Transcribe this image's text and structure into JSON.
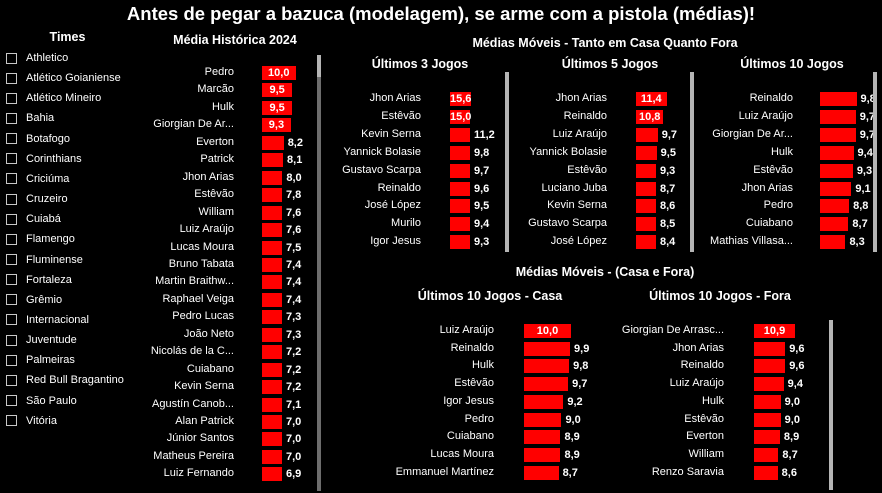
{
  "page_title": "Antes de pegar a bazuca (modelagem), se arme com a pistola (médias)!",
  "colors": {
    "bar": "#ff0000",
    "background": "#000000",
    "text": "#ffffff"
  },
  "filter": {
    "title": "Times",
    "items": [
      "Athletico",
      "Atlético Goianiense",
      "Atlético Mineiro",
      "Bahia",
      "Botafogo",
      "Corinthians",
      "Criciúma",
      "Cruzeiro",
      "Cuiabá",
      "Flamengo",
      "Fluminense",
      "Fortaleza",
      "Grêmio",
      "Internacional",
      "Juventude",
      "Palmeiras",
      "Red Bull Bragantino",
      "São Paulo",
      "Vitória"
    ]
  },
  "section_moveis_title": "Médias Móveis - Tanto em Casa Quanto Fora",
  "section_casafora_title": "Médias Móveis - (Casa e Fora)",
  "chart_data": [
    {
      "type": "bar",
      "orientation": "horizontal",
      "title": "Média Histórica 2024",
      "categories": [
        "Pedro",
        "Marcão",
        "Hulk",
        "Giorgian De Ar...",
        "Everton",
        "Patrick",
        "Jhon Arias",
        "Estêvão",
        "William",
        "Luiz Araújo",
        "Lucas Moura",
        "Bruno Tabata",
        "Martin Braithw...",
        "Raphael Veiga",
        "Pedro Lucas",
        "João Neto",
        "Nicolás de la C...",
        "Cuiabano",
        "Kevin Serna",
        "Agustín Canob...",
        "Alan Patrick",
        "Júnior Santos",
        "Matheus Pereira",
        "Luiz Fernando"
      ],
      "values": [
        10.0,
        9.5,
        9.5,
        9.3,
        8.2,
        8.1,
        8.0,
        7.8,
        7.6,
        7.6,
        7.5,
        7.4,
        7.4,
        7.4,
        7.3,
        7.3,
        7.2,
        7.2,
        7.2,
        7.1,
        7.0,
        7.0,
        7.0,
        6.9
      ],
      "labels": [
        "10,0",
        "9,5",
        "9,5",
        "9,3",
        "8,2",
        "8,1",
        "8,0",
        "7,8",
        "7,6",
        "7,6",
        "7,5",
        "7,4",
        "7,4",
        "7,4",
        "7,3",
        "7,3",
        "7,2",
        "7,2",
        "7,2",
        "7,1",
        "7,0",
        "7,0",
        "7,0",
        "6,9"
      ]
    },
    {
      "type": "bar",
      "orientation": "horizontal",
      "title": "Últimos 3 Jogos",
      "categories": [
        "Jhon Arias",
        "Estêvão",
        "Kevin Serna",
        "Yannick Bolasie",
        "Gustavo Scarpa",
        "Reinaldo",
        "José López",
        "Murilo",
        "Igor Jesus"
      ],
      "values": [
        15.6,
        15.0,
        11.2,
        9.8,
        9.7,
        9.6,
        9.5,
        9.4,
        9.3
      ],
      "labels": [
        "15,6",
        "15,0",
        "11,2",
        "9,8",
        "9,7",
        "9,6",
        "9,5",
        "9,4",
        "9,3"
      ]
    },
    {
      "type": "bar",
      "orientation": "horizontal",
      "title": "Últimos 5 Jogos",
      "categories": [
        "Jhon Arias",
        "Reinaldo",
        "Luiz Araújo",
        "Yannick Bolasie",
        "Estêvão",
        "Luciano Juba",
        "Kevin Serna",
        "Gustavo Scarpa",
        "José López"
      ],
      "values": [
        11.4,
        10.8,
        9.7,
        9.5,
        9.3,
        8.7,
        8.6,
        8.5,
        8.4
      ],
      "labels": [
        "11,4",
        "10,8",
        "9,7",
        "9,5",
        "9,3",
        "8,7",
        "8,6",
        "8,5",
        "8,4"
      ]
    },
    {
      "type": "bar",
      "orientation": "horizontal",
      "title": "Últimos 10 Jogos",
      "categories": [
        "Reinaldo",
        "Luiz Araújo",
        "Giorgian De Ar...",
        "Hulk",
        "Estêvão",
        "Jhon Arias",
        "Pedro",
        "Cuiabano",
        "Mathias Villasa..."
      ],
      "values": [
        9.8,
        9.7,
        9.7,
        9.4,
        9.3,
        9.1,
        8.8,
        8.7,
        8.3
      ],
      "labels": [
        "9,8",
        "9,7",
        "9,7",
        "9,4",
        "9,3",
        "9,1",
        "8,8",
        "8,7",
        "8,3"
      ]
    },
    {
      "type": "bar",
      "orientation": "horizontal",
      "title": "Últimos 10 Jogos - Casa",
      "categories": [
        "Luiz Araújo",
        "Reinaldo",
        "Hulk",
        "Estêvão",
        "Igor Jesus",
        "Pedro",
        "Cuiabano",
        "Lucas Moura",
        "Emmanuel Martínez"
      ],
      "values": [
        10.0,
        9.9,
        9.8,
        9.7,
        9.2,
        9.0,
        8.9,
        8.9,
        8.7
      ],
      "labels": [
        "10,0",
        "9,9",
        "9,8",
        "9,7",
        "9,2",
        "9,0",
        "8,9",
        "8,9",
        "8,7"
      ]
    },
    {
      "type": "bar",
      "orientation": "horizontal",
      "title": "Últimos 10 Jogos - Fora",
      "categories": [
        "Giorgian De Arrasc...",
        "Jhon Arias",
        "Reinaldo",
        "Luiz Araújo",
        "Hulk",
        "Estêvão",
        "Everton",
        "William",
        "Renzo Saravia"
      ],
      "values": [
        10.9,
        9.6,
        9.6,
        9.4,
        9.0,
        9.0,
        8.9,
        8.7,
        8.6
      ],
      "labels": [
        "10,9",
        "9,6",
        "9,6",
        "9,4",
        "9,0",
        "9,0",
        "8,9",
        "8,7",
        "8,6"
      ]
    }
  ]
}
